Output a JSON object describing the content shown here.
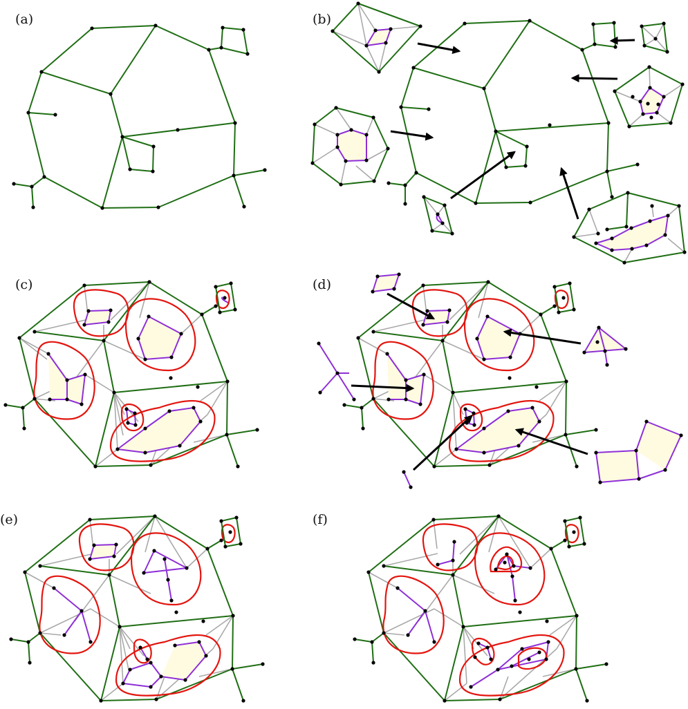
{
  "panels": [
    {
      "id": "a",
      "label": "(a)"
    },
    {
      "id": "b",
      "label": "(b)"
    },
    {
      "id": "c",
      "label": "(c)"
    },
    {
      "id": "d",
      "label": "(d)"
    },
    {
      "id": "e",
      "label": "(e)"
    },
    {
      "id": "f",
      "label": "(f)"
    }
  ],
  "colors": {
    "graph_edge": "#1f6e14",
    "triangulation_edge": "#a9a9a9",
    "inner_graph_edge": "#8e2fd6",
    "region_outline": "#e3150f",
    "face_fill": "#fffbe1",
    "arrow": "#000000",
    "vertex": "#000000"
  }
}
